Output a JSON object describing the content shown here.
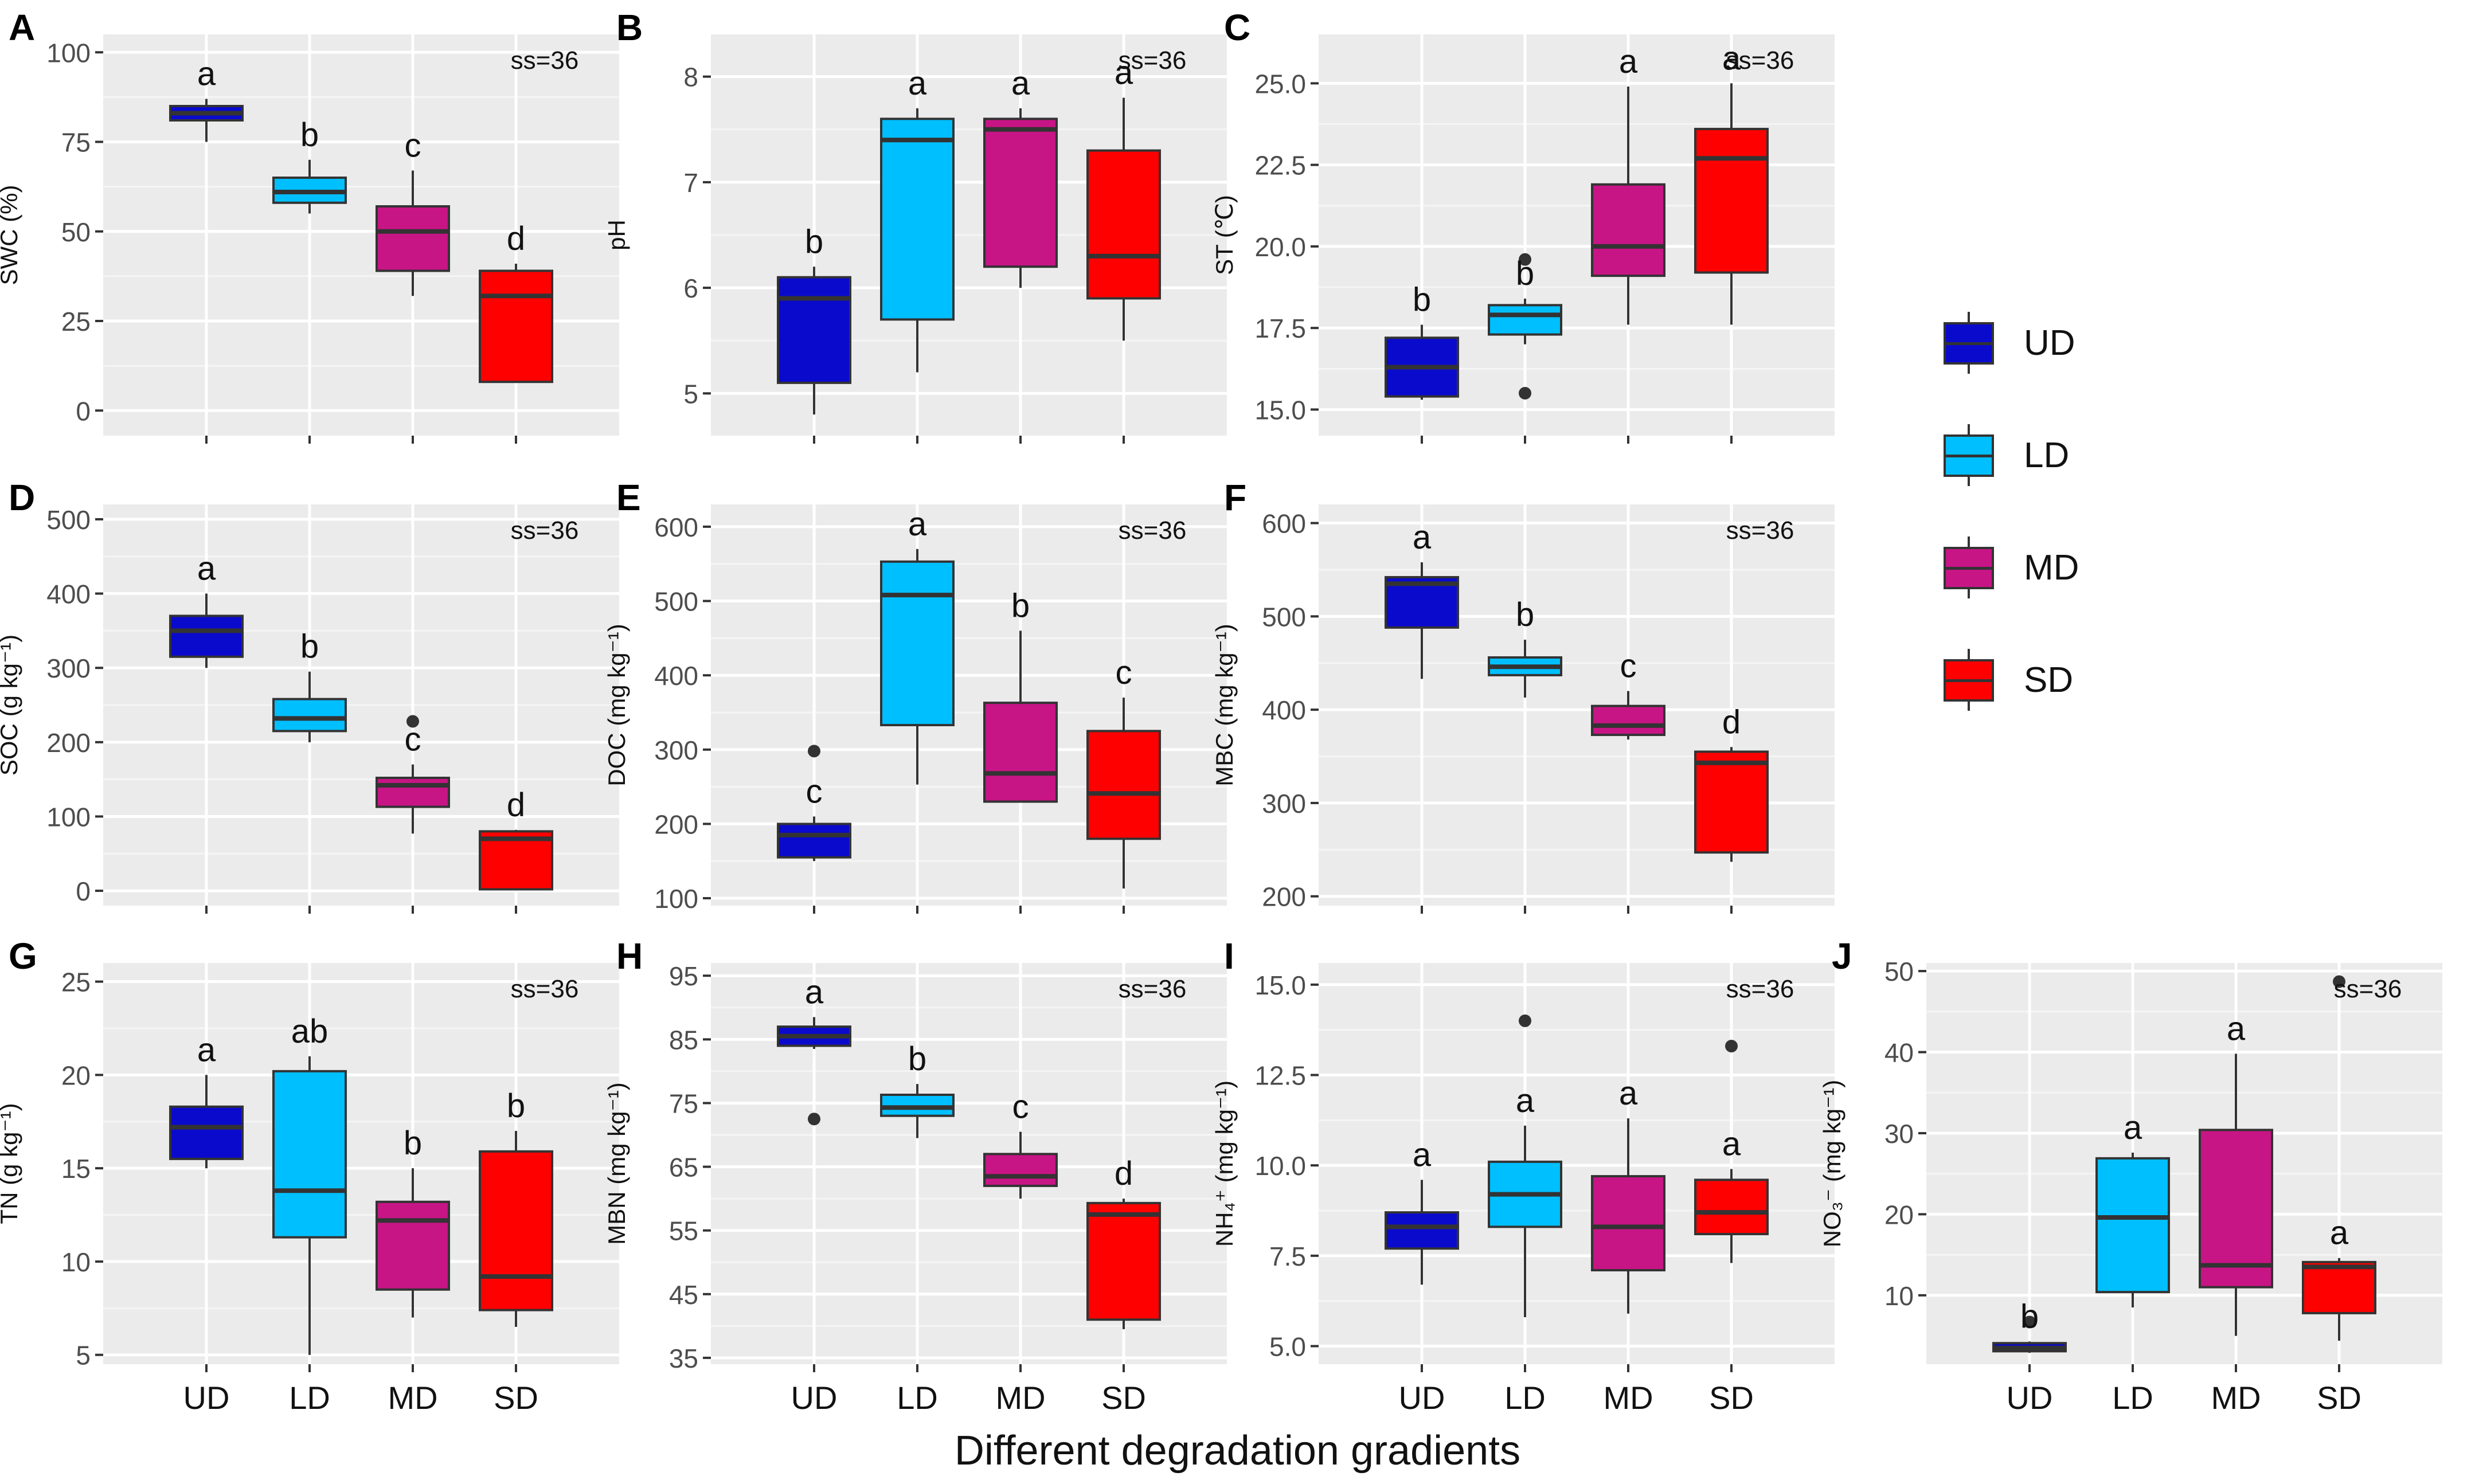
{
  "figure": {
    "x_axis_title": "Different degradation gradients",
    "groups": [
      "UD",
      "LD",
      "MD",
      "SD"
    ],
    "colors": {
      "UD": "#0a0acd",
      "LD": "#00bfff",
      "MD": "#c71585",
      "SD": "#ff0000"
    },
    "panel_bg": "#ebebeb",
    "legend": [
      {
        "key": "UD",
        "label": "UD"
      },
      {
        "key": "LD",
        "label": "LD"
      },
      {
        "key": "MD",
        "label": "MD"
      },
      {
        "key": "SD",
        "label": "SD"
      }
    ]
  },
  "chart_data": [
    {
      "type": "box",
      "panel": "A",
      "ylabel": "SWC (%)",
      "ylim": [
        -7,
        105
      ],
      "yticks": [
        0,
        25,
        50,
        75,
        100
      ],
      "yticklabels": [
        "0",
        "25",
        "50",
        "75",
        "100"
      ],
      "annotation": "ss=36",
      "boxes": [
        {
          "group": "UD",
          "min": 75,
          "q1": 81,
          "median": 83,
          "q3": 85,
          "max": 87,
          "outliers": [],
          "letter": "a"
        },
        {
          "group": "LD",
          "min": 55,
          "q1": 58,
          "median": 61,
          "q3": 65,
          "max": 70,
          "outliers": [],
          "letter": "b"
        },
        {
          "group": "MD",
          "min": 32,
          "q1": 39,
          "median": 50,
          "q3": 57,
          "max": 67,
          "outliers": [],
          "letter": "c"
        },
        {
          "group": "SD",
          "min": 8,
          "q1": 8,
          "median": 32,
          "q3": 39,
          "max": 41,
          "outliers": [],
          "letter": "d"
        }
      ]
    },
    {
      "type": "box",
      "panel": "B",
      "ylabel": "pH",
      "ylim": [
        4.6,
        8.4
      ],
      "yticks": [
        5,
        6,
        7,
        8
      ],
      "yticklabels": [
        "5",
        "6",
        "7",
        "8"
      ],
      "annotation": "ss=36",
      "boxes": [
        {
          "group": "UD",
          "min": 4.8,
          "q1": 5.1,
          "median": 5.9,
          "q3": 6.1,
          "max": 6.2,
          "outliers": [],
          "letter": "b"
        },
        {
          "group": "LD",
          "min": 5.2,
          "q1": 5.7,
          "median": 7.4,
          "q3": 7.6,
          "max": 7.7,
          "outliers": [],
          "letter": "a"
        },
        {
          "group": "MD",
          "min": 6.0,
          "q1": 6.2,
          "median": 7.5,
          "q3": 7.6,
          "max": 7.7,
          "outliers": [],
          "letter": "a"
        },
        {
          "group": "SD",
          "min": 5.5,
          "q1": 5.9,
          "median": 6.3,
          "q3": 7.3,
          "max": 7.8,
          "outliers": [],
          "letter": "a"
        }
      ]
    },
    {
      "type": "box",
      "panel": "C",
      "ylabel": "ST (℃)",
      "ylim": [
        14.2,
        26.5
      ],
      "yticks": [
        15.0,
        17.5,
        20.0,
        22.5,
        25.0
      ],
      "yticklabels": [
        "15.0",
        "17.5",
        "20.0",
        "22.5",
        "25.0"
      ],
      "annotation": "ss=36",
      "boxes": [
        {
          "group": "UD",
          "min": 15.3,
          "q1": 15.4,
          "median": 16.3,
          "q3": 17.2,
          "max": 17.6,
          "outliers": [],
          "letter": "b"
        },
        {
          "group": "LD",
          "min": 17.0,
          "q1": 17.3,
          "median": 17.9,
          "q3": 18.2,
          "max": 18.4,
          "outliers": [
            15.5,
            19.6
          ],
          "letter": "b"
        },
        {
          "group": "MD",
          "min": 17.6,
          "q1": 19.1,
          "median": 20.0,
          "q3": 21.9,
          "max": 24.9,
          "outliers": [],
          "letter": "a"
        },
        {
          "group": "SD",
          "min": 17.6,
          "q1": 19.2,
          "median": 22.7,
          "q3": 23.6,
          "max": 25.0,
          "outliers": [],
          "letter": "a"
        }
      ]
    },
    {
      "type": "box",
      "panel": "D",
      "ylabel": "SOC (g kg⁻¹)",
      "ylim": [
        -20,
        520
      ],
      "yticks": [
        0,
        100,
        200,
        300,
        400,
        500
      ],
      "yticklabels": [
        "0",
        "100",
        "200",
        "300",
        "400",
        "500"
      ],
      "annotation": "ss=36",
      "boxes": [
        {
          "group": "UD",
          "min": 300,
          "q1": 315,
          "median": 350,
          "q3": 370,
          "max": 400,
          "outliers": [],
          "letter": "a"
        },
        {
          "group": "LD",
          "min": 200,
          "q1": 215,
          "median": 232,
          "q3": 258,
          "max": 295,
          "outliers": [],
          "letter": "b"
        },
        {
          "group": "MD",
          "min": 77,
          "q1": 113,
          "median": 142,
          "q3": 152,
          "max": 170,
          "outliers": [
            228
          ],
          "letter": "c"
        },
        {
          "group": "SD",
          "min": 2,
          "q1": 2,
          "median": 70,
          "q3": 80,
          "max": 82,
          "outliers": [],
          "letter": "d"
        }
      ]
    },
    {
      "type": "box",
      "panel": "E",
      "ylabel": "DOC (mg kg⁻¹)",
      "ylim": [
        90,
        630
      ],
      "yticks": [
        100,
        200,
        300,
        400,
        500,
        600
      ],
      "yticklabels": [
        "100",
        "200",
        "300",
        "400",
        "500",
        "600"
      ],
      "annotation": "ss=36",
      "boxes": [
        {
          "group": "UD",
          "min": 150,
          "q1": 155,
          "median": 185,
          "q3": 200,
          "max": 210,
          "outliers": [
            298
          ],
          "letter": "c"
        },
        {
          "group": "LD",
          "min": 253,
          "q1": 333,
          "median": 508,
          "q3": 553,
          "max": 570,
          "outliers": [],
          "letter": "a"
        },
        {
          "group": "MD",
          "min": 230,
          "q1": 230,
          "median": 268,
          "q3": 363,
          "max": 460,
          "outliers": [],
          "letter": "b"
        },
        {
          "group": "SD",
          "min": 113,
          "q1": 180,
          "median": 241,
          "q3": 325,
          "max": 370,
          "outliers": [],
          "letter": "c"
        }
      ]
    },
    {
      "type": "box",
      "panel": "F",
      "ylabel": "MBC (mg kg⁻¹)",
      "ylim": [
        190,
        620
      ],
      "yticks": [
        200,
        300,
        400,
        500,
        600
      ],
      "yticklabels": [
        "200",
        "300",
        "400",
        "500",
        "600"
      ],
      "annotation": "ss=36",
      "boxes": [
        {
          "group": "UD",
          "min": 433,
          "q1": 488,
          "median": 535,
          "q3": 542,
          "max": 558,
          "outliers": [],
          "letter": "a"
        },
        {
          "group": "LD",
          "min": 413,
          "q1": 437,
          "median": 446,
          "q3": 456,
          "max": 475,
          "outliers": [],
          "letter": "b"
        },
        {
          "group": "MD",
          "min": 368,
          "q1": 373,
          "median": 383,
          "q3": 404,
          "max": 420,
          "outliers": [],
          "letter": "c"
        },
        {
          "group": "SD",
          "min": 237,
          "q1": 247,
          "median": 343,
          "q3": 355,
          "max": 360,
          "outliers": [],
          "letter": "d"
        }
      ]
    },
    {
      "type": "box",
      "panel": "G",
      "ylabel": "TN (g kg⁻¹)",
      "ylim": [
        4.5,
        26
      ],
      "yticks": [
        5,
        10,
        15,
        20,
        25
      ],
      "yticklabels": [
        "5",
        "10",
        "15",
        "20",
        "25"
      ],
      "annotation": "ss=36",
      "boxes": [
        {
          "group": "UD",
          "min": 15.0,
          "q1": 15.5,
          "median": 17.2,
          "q3": 18.3,
          "max": 20.0,
          "outliers": [],
          "letter": "a"
        },
        {
          "group": "LD",
          "min": 5.0,
          "q1": 11.3,
          "median": 13.8,
          "q3": 20.2,
          "max": 21.0,
          "outliers": [],
          "letter": "ab"
        },
        {
          "group": "MD",
          "min": 7.0,
          "q1": 8.5,
          "median": 12.2,
          "q3": 13.2,
          "max": 15.0,
          "outliers": [],
          "letter": "b"
        },
        {
          "group": "SD",
          "min": 6.5,
          "q1": 7.4,
          "median": 9.2,
          "q3": 15.9,
          "max": 17.0,
          "outliers": [],
          "letter": "b"
        }
      ]
    },
    {
      "type": "box",
      "panel": "H",
      "ylabel": "MBN (mg kg⁻¹)",
      "ylim": [
        34,
        97
      ],
      "yticks": [
        35,
        45,
        55,
        65,
        75,
        85,
        95
      ],
      "yticklabels": [
        "35",
        "45",
        "55",
        "65",
        "75",
        "85",
        "95"
      ],
      "annotation": "ss=36",
      "boxes": [
        {
          "group": "UD",
          "min": 83.5,
          "q1": 84,
          "median": 85.5,
          "q3": 87,
          "max": 88.5,
          "outliers": [
            72.5
          ],
          "letter": "a"
        },
        {
          "group": "LD",
          "min": 69.5,
          "q1": 73,
          "median": 74.3,
          "q3": 76.3,
          "max": 78,
          "outliers": [],
          "letter": "b"
        },
        {
          "group": "MD",
          "min": 60,
          "q1": 62,
          "median": 63.5,
          "q3": 67,
          "max": 70.5,
          "outliers": [],
          "letter": "c"
        },
        {
          "group": "SD",
          "min": 39.5,
          "q1": 41,
          "median": 57.5,
          "q3": 59.3,
          "max": 60,
          "outliers": [],
          "letter": "d"
        }
      ]
    },
    {
      "type": "box",
      "panel": "I",
      "ylabel": "NH₄⁺ (mg kg⁻¹)",
      "ylim": [
        4.5,
        15.6
      ],
      "yticks": [
        5.0,
        7.5,
        10.0,
        12.5,
        15.0
      ],
      "yticklabels": [
        "5.0",
        "7.5",
        "10.0",
        "12.5",
        "15.0"
      ],
      "annotation": "ss=36",
      "boxes": [
        {
          "group": "UD",
          "min": 6.7,
          "q1": 7.7,
          "median": 8.3,
          "q3": 8.7,
          "max": 9.6,
          "outliers": [],
          "letter": "a"
        },
        {
          "group": "LD",
          "min": 5.8,
          "q1": 8.3,
          "median": 9.2,
          "q3": 10.1,
          "max": 11.1,
          "outliers": [
            14.0
          ],
          "letter": "a"
        },
        {
          "group": "MD",
          "min": 5.9,
          "q1": 7.1,
          "median": 8.3,
          "q3": 9.7,
          "max": 11.3,
          "outliers": [],
          "letter": "a"
        },
        {
          "group": "SD",
          "min": 7.3,
          "q1": 8.1,
          "median": 8.7,
          "q3": 9.6,
          "max": 9.9,
          "outliers": [
            13.3
          ],
          "letter": "a"
        }
      ]
    },
    {
      "type": "box",
      "panel": "J",
      "ylabel": "NO₃⁻ (mg kg⁻¹)",
      "ylim": [
        1.5,
        51
      ],
      "yticks": [
        10,
        20,
        30,
        40,
        50
      ],
      "yticklabels": [
        "10",
        "20",
        "30",
        "40",
        "50"
      ],
      "annotation": "ss=36",
      "boxes": [
        {
          "group": "UD",
          "min": 2.9,
          "q1": 3.1,
          "median": 3.5,
          "q3": 4.1,
          "max": 4.3,
          "outliers": [
            6.7
          ],
          "letter": "b"
        },
        {
          "group": "LD",
          "min": 8.5,
          "q1": 10.4,
          "median": 19.6,
          "q3": 26.9,
          "max": 27.6,
          "outliers": [],
          "letter": "a"
        },
        {
          "group": "MD",
          "min": 5.0,
          "q1": 11.0,
          "median": 13.7,
          "q3": 30.4,
          "max": 39.8,
          "outliers": [],
          "letter": "a"
        },
        {
          "group": "SD",
          "min": 4.4,
          "q1": 7.8,
          "median": 13.5,
          "q3": 14.1,
          "max": 14.6,
          "outliers": [
            48.7
          ],
          "letter": "a"
        }
      ]
    }
  ]
}
